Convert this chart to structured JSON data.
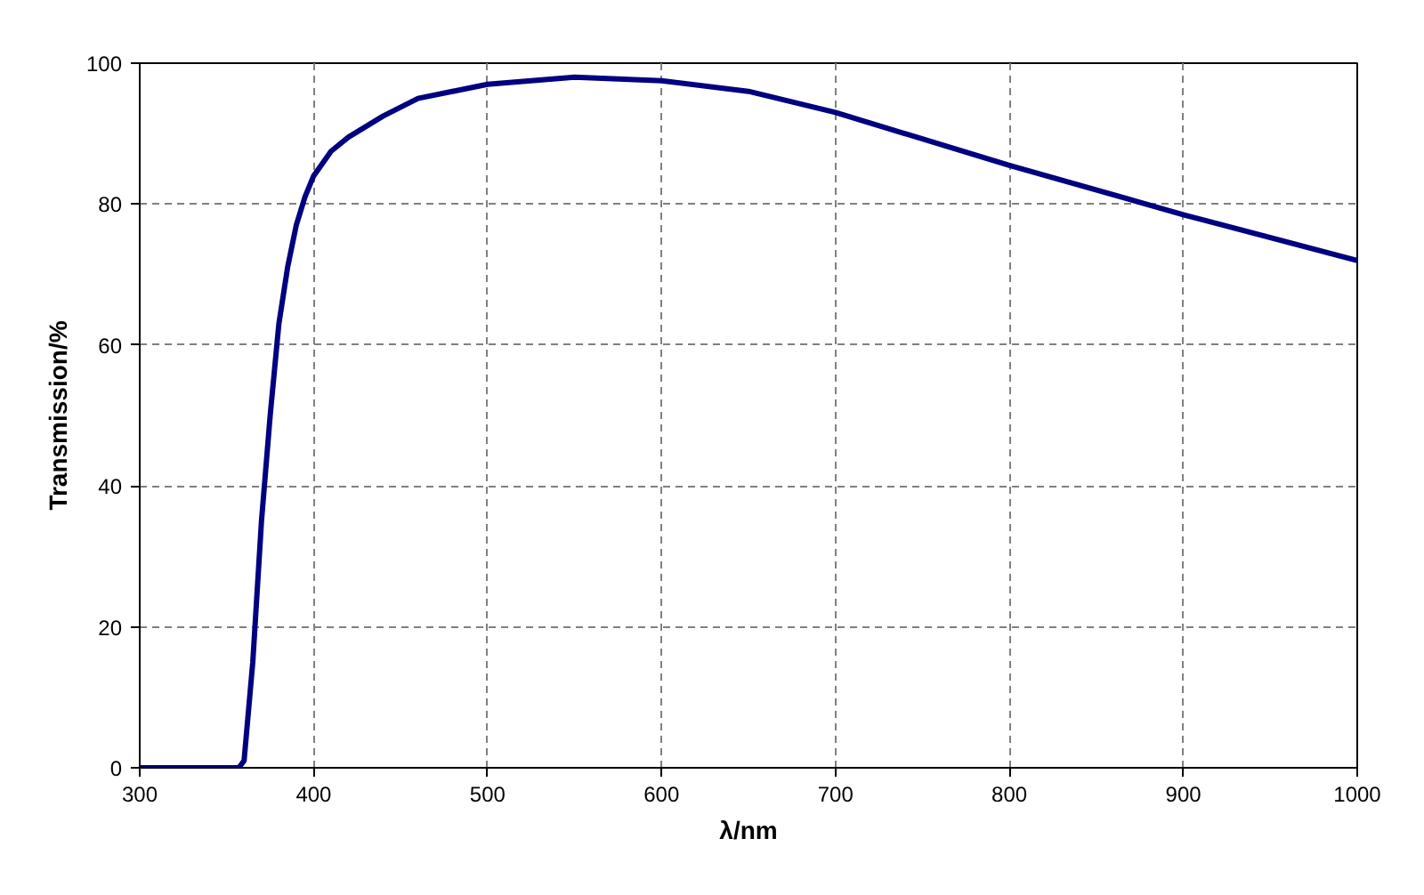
{
  "chart_data": {
    "type": "line",
    "xlabel": "λ/nm",
    "ylabel": "Transmission/%",
    "x": [
      300,
      357,
      360,
      365,
      370,
      375,
      380,
      385,
      390,
      395,
      400,
      410,
      420,
      440,
      460,
      500,
      550,
      600,
      650,
      700,
      800,
      900,
      1000
    ],
    "series": [
      {
        "color": "#000080",
        "values": [
          0,
          0,
          1,
          15,
          35,
          50,
          63,
          71,
          77,
          81,
          84,
          87.5,
          89.5,
          92.5,
          95,
          97,
          98,
          97.5,
          96,
          93,
          85.5,
          78.5,
          72
        ]
      }
    ],
    "xlim": [
      300,
      1000
    ],
    "xticks": [
      300,
      400,
      500,
      600,
      700,
      800,
      900,
      1000
    ],
    "ylim": [
      0,
      100
    ],
    "yticks": [
      0,
      20,
      40,
      60,
      80,
      100
    ],
    "grid": true,
    "line_style": "solid"
  }
}
